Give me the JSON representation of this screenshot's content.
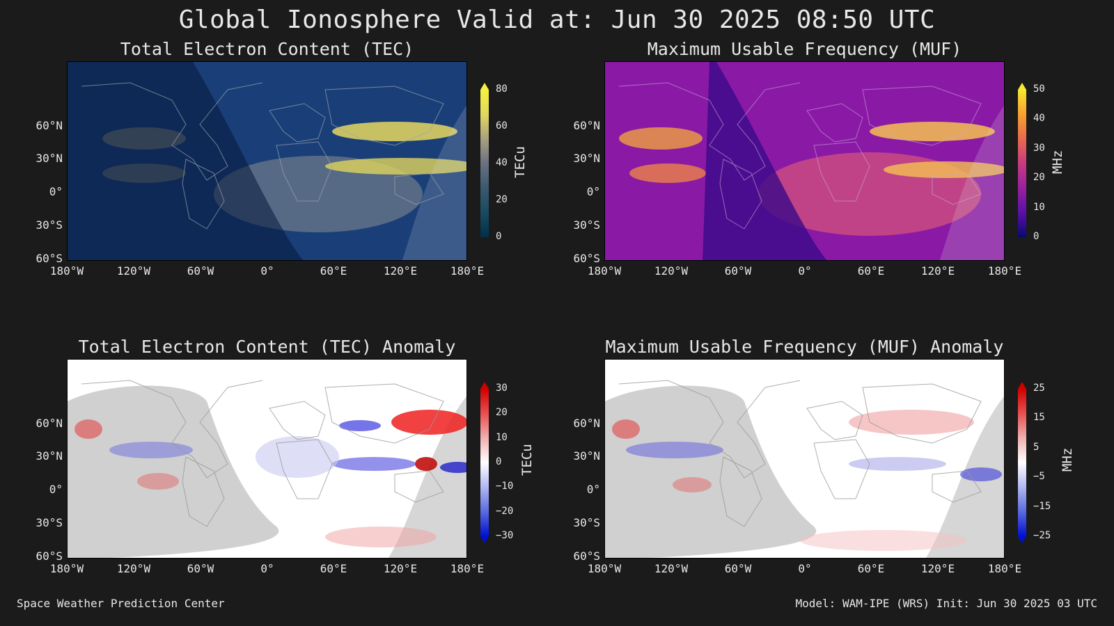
{
  "page_title": "Global Ionosphere Valid at: Jun 30 2025 08:50 UTC",
  "lat_labels": [
    "60°N",
    "30°N",
    "0°",
    "30°S",
    "60°S"
  ],
  "lon_labels": [
    "180°W",
    "120°W",
    "60°W",
    "0°",
    "60°E",
    "120°E",
    "180°E"
  ],
  "panels": {
    "tec": {
      "title": "Total Electron Content (TEC)",
      "unit": "TECu",
      "ticks": [
        "80",
        "60",
        "40",
        "20",
        "0"
      ],
      "colors": {
        "low": "#0a1f4a",
        "mid": "#6e7a86",
        "high": "#f2e64a"
      }
    },
    "muf": {
      "title": "Maximum Usable Frequency (MUF)",
      "unit": "MHz",
      "ticks": [
        "50",
        "40",
        "30",
        "20",
        "10",
        "0"
      ],
      "colors": {
        "low": "#2a0a6e",
        "mid": "#b8389a",
        "high": "#f7e64a"
      }
    },
    "tec_anom": {
      "title": "Total Electron Content (TEC) Anomaly",
      "unit": "TECu",
      "ticks": [
        "30",
        "20",
        "10",
        "0",
        "−10",
        "−20",
        "−30"
      ],
      "colors": {
        "low": "#0018e0",
        "mid": "#ffffff",
        "high": "#e00000"
      }
    },
    "muf_anom": {
      "title": "Maximum Usable Frequency (MUF) Anomaly",
      "unit": "MHz",
      "ticks": [
        "25",
        "15",
        "5",
        "−5",
        "−15",
        "−25"
      ],
      "colors": {
        "low": "#0018e0",
        "mid": "#ffffff",
        "high": "#e00000"
      }
    }
  },
  "footer": {
    "left": "Space Weather Prediction Center",
    "right": "Model: WAM-IPE (WRS) Init: Jun 30 2025 03 UTC"
  }
}
